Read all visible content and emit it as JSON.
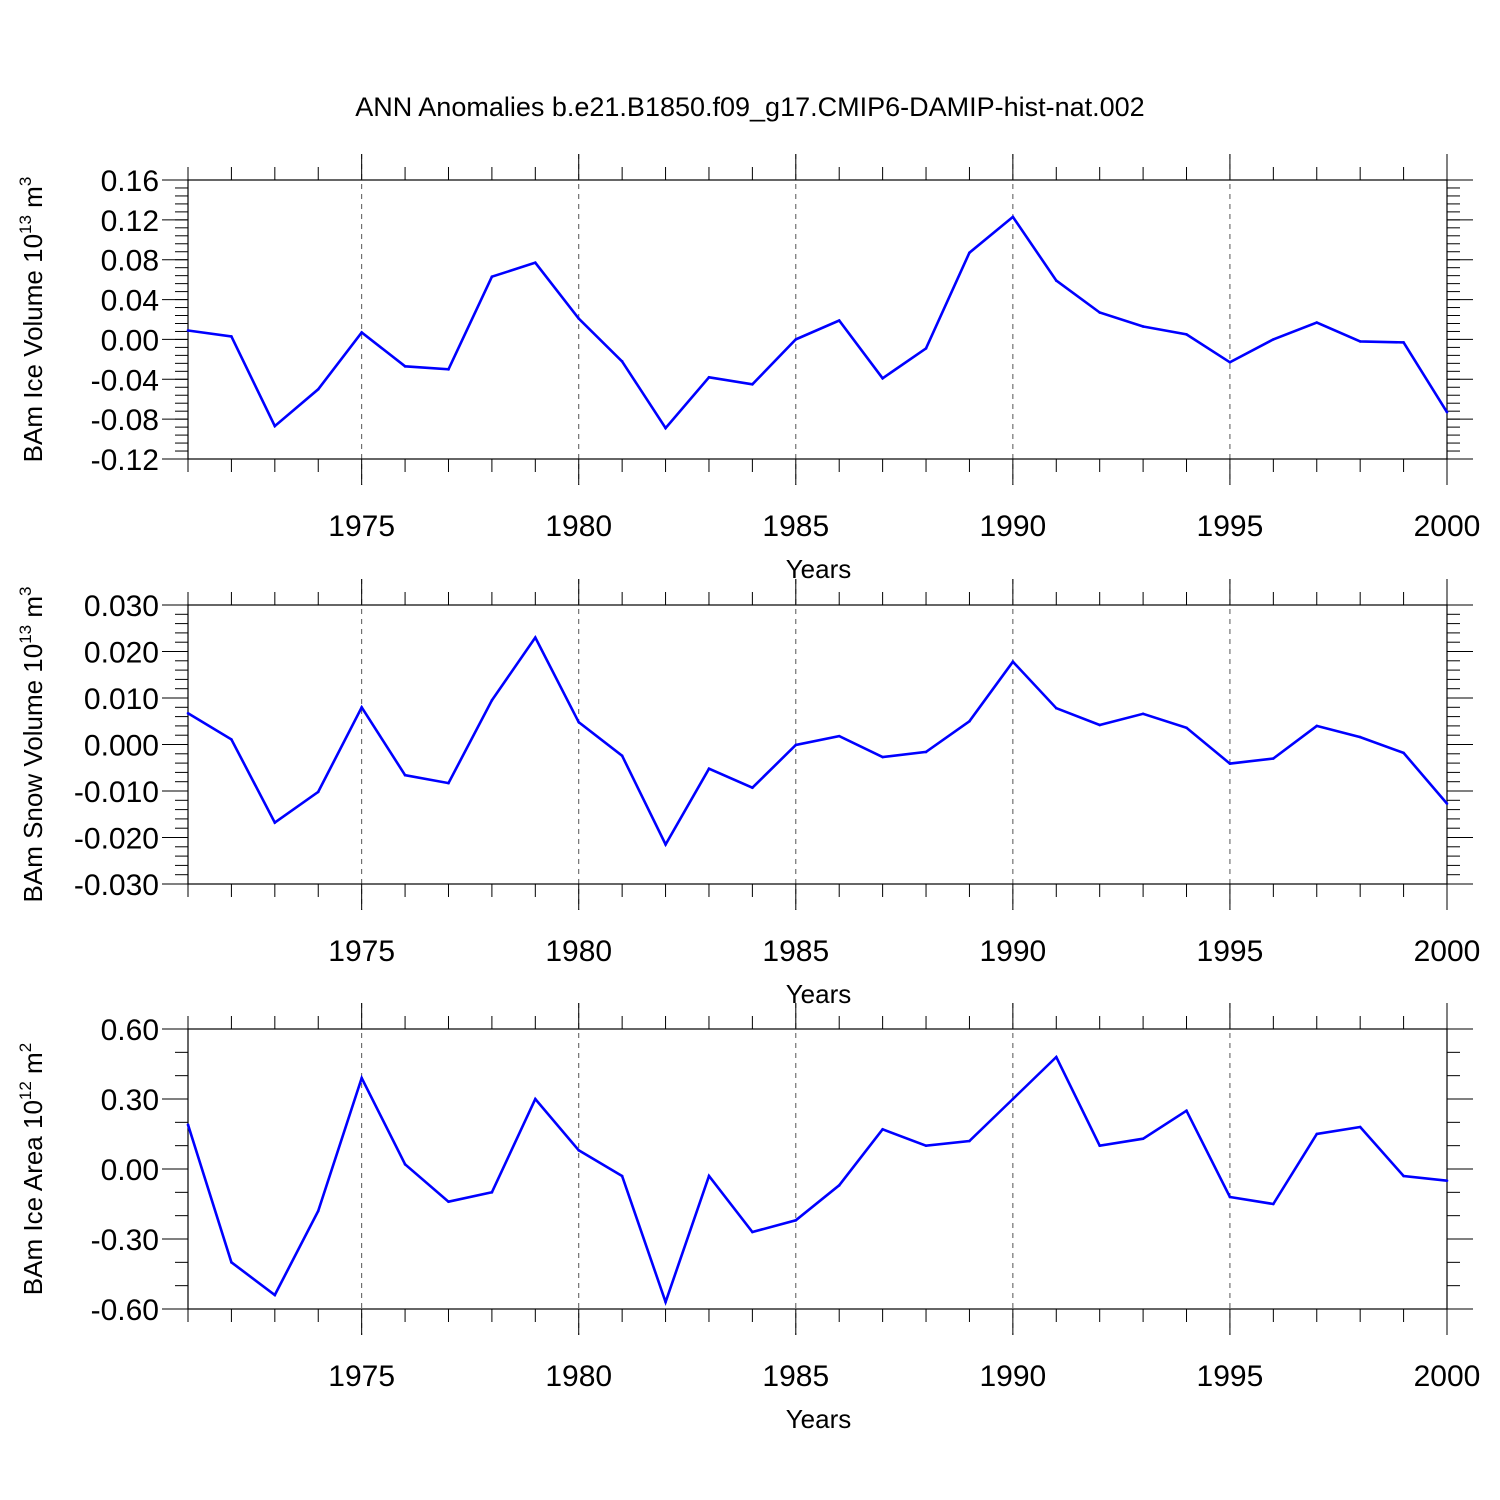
{
  "figure": {
    "title": "ANN Anomalies b.e21.B1850.f09_g17.CMIP6-DAMIP-hist-nat.002"
  },
  "style": {
    "line_color": "#0000ff",
    "axis_color": "#000000",
    "grid_color": "#555555"
  },
  "chart_data": [
    {
      "type": "line",
      "ylabel": "BAm Ice Volume 10",
      "ylabel_exp": "13",
      "ylabel_unit": " m",
      "ylabel_unit_exp": "3",
      "xlabel": "Years",
      "xlim": [
        1971,
        2000
      ],
      "ylim": [
        -0.12,
        0.16
      ],
      "yticks": [
        -0.12,
        -0.08,
        -0.04,
        0.0,
        0.04,
        0.08,
        0.12,
        0.16
      ],
      "ytick_labels": [
        "-0.12",
        "-0.08",
        "-0.04",
        "0.00",
        "0.04",
        "0.08",
        "0.12",
        "0.16"
      ],
      "yminor_step": 0.008,
      "xticks": [
        1975,
        1980,
        1985,
        1990,
        1995,
        2000
      ],
      "xtick_labels": [
        "1975",
        "1980",
        "1985",
        "1990",
        "1995",
        "2000"
      ],
      "x": [
        1971,
        1972,
        1973,
        1974,
        1975,
        1976,
        1977,
        1978,
        1979,
        1980,
        1981,
        1982,
        1983,
        1984,
        1985,
        1986,
        1987,
        1988,
        1989,
        1990,
        1991,
        1992,
        1993,
        1994,
        1995,
        1996,
        1997,
        1998,
        1999,
        2000
      ],
      "values": [
        0.009,
        0.003,
        -0.087,
        -0.05,
        0.007,
        -0.027,
        -0.03,
        0.063,
        0.077,
        0.021,
        -0.022,
        -0.089,
        -0.038,
        -0.045,
        0.0,
        0.019,
        -0.039,
        -0.009,
        0.087,
        0.123,
        0.059,
        0.027,
        0.013,
        0.005,
        -0.023,
        0.0,
        0.017,
        -0.002,
        -0.003,
        -0.073
      ]
    },
    {
      "type": "line",
      "ylabel": "BAm Snow Volume 10",
      "ylabel_exp": "13",
      "ylabel_unit": " m",
      "ylabel_unit_exp": "3",
      "xlabel": "Years",
      "xlim": [
        1971,
        2000
      ],
      "ylim": [
        -0.03,
        0.03
      ],
      "yticks": [
        -0.03,
        -0.02,
        -0.01,
        0.0,
        0.01,
        0.02,
        0.03
      ],
      "ytick_labels": [
        "-0.030",
        "-0.020",
        "-0.010",
        "0.000",
        "0.010",
        "0.020",
        "0.030"
      ],
      "yminor_step": 0.002,
      "xticks": [
        1975,
        1980,
        1985,
        1990,
        1995,
        2000
      ],
      "xtick_labels": [
        "1975",
        "1980",
        "1985",
        "1990",
        "1995",
        "2000"
      ],
      "x": [
        1971,
        1972,
        1973,
        1974,
        1975,
        1976,
        1977,
        1978,
        1979,
        1980,
        1981,
        1982,
        1983,
        1984,
        1985,
        1986,
        1987,
        1988,
        1989,
        1990,
        1991,
        1992,
        1993,
        1994,
        1995,
        1996,
        1997,
        1998,
        1999,
        2000
      ],
      "values": [
        0.0067,
        0.0011,
        -0.0168,
        -0.0102,
        0.008,
        -0.0066,
        -0.0083,
        0.0095,
        0.023,
        0.0048,
        -0.0024,
        -0.0215,
        -0.0052,
        -0.0093,
        -0.0001,
        0.0018,
        -0.0027,
        -0.0016,
        0.005,
        0.0178,
        0.0078,
        0.0042,
        0.0066,
        0.0036,
        -0.0041,
        -0.003,
        0.004,
        0.0016,
        -0.0018,
        -0.0127
      ]
    },
    {
      "type": "line",
      "ylabel": "BAm Ice Area 10",
      "ylabel_exp": "12",
      "ylabel_unit": " m",
      "ylabel_unit_exp": "2",
      "xlabel": "Years",
      "xlim": [
        1971,
        2000
      ],
      "ylim": [
        -0.6,
        0.6
      ],
      "yticks": [
        -0.6,
        -0.3,
        0.0,
        0.3,
        0.6
      ],
      "ytick_labels": [
        "-0.60",
        "-0.30",
        "0.00",
        "0.30",
        "0.60"
      ],
      "yminor_step": 0.1,
      "xticks": [
        1975,
        1980,
        1985,
        1990,
        1995,
        2000
      ],
      "xtick_labels": [
        "1975",
        "1980",
        "1985",
        "1990",
        "1995",
        "2000"
      ],
      "x": [
        1971,
        1972,
        1973,
        1974,
        1975,
        1976,
        1977,
        1978,
        1979,
        1980,
        1981,
        1982,
        1983,
        1984,
        1985,
        1986,
        1987,
        1988,
        1989,
        1990,
        1991,
        1992,
        1993,
        1994,
        1995,
        1996,
        1997,
        1998,
        1999,
        2000
      ],
      "values": [
        0.19,
        -0.4,
        -0.54,
        -0.18,
        0.39,
        0.02,
        -0.14,
        -0.1,
        0.3,
        0.08,
        -0.03,
        -0.57,
        -0.03,
        -0.27,
        -0.22,
        -0.07,
        0.17,
        0.1,
        0.12,
        0.3,
        0.48,
        0.1,
        0.13,
        0.25,
        -0.12,
        -0.15,
        0.15,
        0.18,
        -0.03,
        -0.05
      ]
    }
  ]
}
